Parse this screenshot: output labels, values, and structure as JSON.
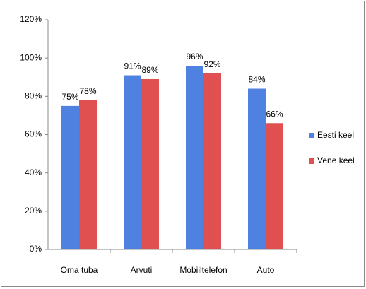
{
  "chart_data": {
    "type": "bar",
    "categories": [
      "Oma tuba",
      "Arvuti",
      "Mobiiltelefon",
      "Auto"
    ],
    "series": [
      {
        "name": "Eesti keel",
        "color": "#4f81e0",
        "values": [
          75,
          91,
          96,
          84
        ],
        "value_labels": [
          "75%",
          "91%",
          "96%",
          "84%"
        ]
      },
      {
        "name": "Vene keel",
        "color": "#e05050",
        "values": [
          78,
          89,
          92,
          66
        ],
        "value_labels": [
          "78%",
          "89%",
          "92%",
          "66%"
        ]
      }
    ],
    "ylim": [
      0,
      120
    ],
    "yticks": [
      {
        "value": 0,
        "label": "0%"
      },
      {
        "value": 20,
        "label": "20%"
      },
      {
        "value": 40,
        "label": "40%"
      },
      {
        "value": 60,
        "label": "60%"
      },
      {
        "value": 80,
        "label": "80%"
      },
      {
        "value": 100,
        "label": "100%"
      },
      {
        "value": 120,
        "label": "120%"
      }
    ],
    "grid": false,
    "legend": "right"
  }
}
